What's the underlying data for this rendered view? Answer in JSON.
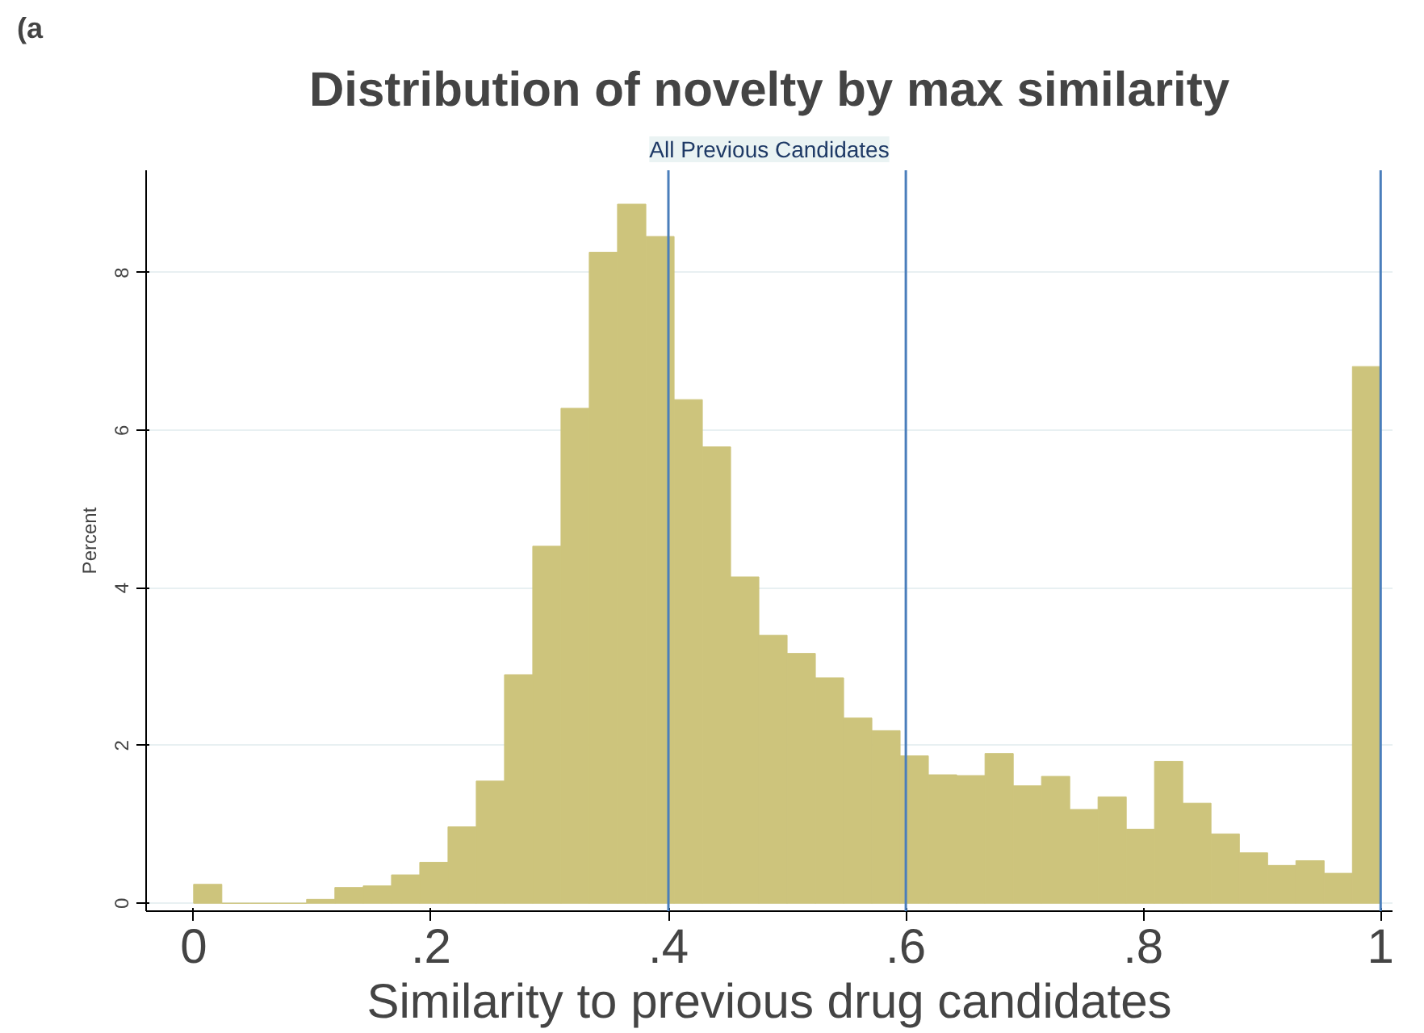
{
  "chart_data": {
    "type": "histogram",
    "title": "Distribution of novelty by max similarity",
    "subtitle": "All Previous Candidates",
    "xlabel": "Similarity to previous drug candidates",
    "ylabel": "Percent",
    "annotations": [
      "(a"
    ],
    "bins": [
      0,
      0.0238,
      0.0476,
      0.0714,
      0.0952,
      0.119,
      0.1429,
      0.1667,
      0.1905,
      0.2143,
      0.2381,
      0.2619,
      0.2857,
      0.3095,
      0.3333,
      0.3571,
      0.381,
      0.4048,
      0.4286,
      0.4524,
      0.4762,
      0.5,
      0.5238,
      0.5476,
      0.5714,
      0.5952,
      0.619,
      0.6429,
      0.6667,
      0.6905,
      0.7143,
      0.7381,
      0.7619,
      0.7857,
      0.8095,
      0.8333,
      0.8571,
      0.881,
      0.9048,
      0.9286,
      0.9524,
      0.9762,
      1
    ],
    "values": [
      0.24,
      0,
      0,
      0,
      0.05,
      0.2,
      0.22,
      0.36,
      0.52,
      0.97,
      1.55,
      2.9,
      4.53,
      6.28,
      8.26,
      8.87,
      8.46,
      6.39,
      5.79,
      4.14,
      3.4,
      3.17,
      2.86,
      2.35,
      2.19,
      1.87,
      1.63,
      1.62,
      1.9,
      1.49,
      1.61,
      1.19,
      1.35,
      0.94,
      1.8,
      1.27,
      0.88,
      0.64,
      0.48,
      0.54,
      0.38,
      6.81
    ],
    "color": "#cdc47c",
    "xlim": [
      -0.04,
      1.01
    ],
    "ylim": [
      -0.1,
      9.3
    ],
    "xticks": [
      0,
      {
        "value": 0.2,
        "label": ".2"
      },
      {
        "value": 0.4,
        "label": ".4"
      },
      {
        "value": 0.6,
        "label": ".6"
      },
      {
        "value": 0.8,
        "label": ".8"
      },
      1
    ],
    "yticks": [
      0,
      2,
      4,
      6,
      8
    ],
    "grid": "y",
    "ref_lines": [
      {
        "axis": "x",
        "value": 0.4,
        "color": "#4a7ebb"
      },
      {
        "axis": "x",
        "value": 0.6,
        "color": "#4a7ebb"
      },
      {
        "axis": "x",
        "value": 1,
        "color": "#4a7ebb"
      }
    ]
  }
}
